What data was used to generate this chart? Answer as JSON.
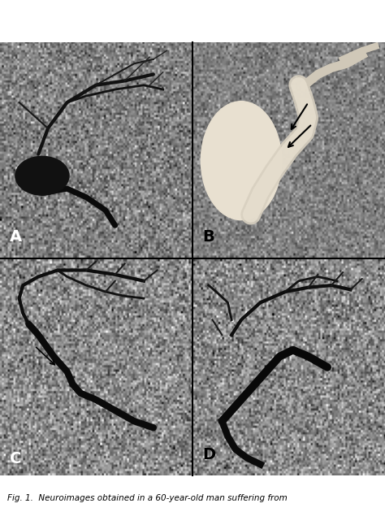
{
  "title": "Fig. 1. Neuroimages obtained in a 60-year-old man suffering from",
  "panel_labels": [
    "A",
    "B",
    "C",
    "D"
  ],
  "panel_label_color": "#000000",
  "background_color": "#ffffff",
  "panel_bg_A": "#a0a0a0",
  "panel_bg_B": "#c8c0b0",
  "panel_bg_C": "#909090",
  "panel_bg_D": "#a8a8a8",
  "figsize": [
    4.74,
    6.46
  ],
  "dpi": 100,
  "caption": "Fig. 1.  Neuroimages obtained in a 60-year-old man suffering from",
  "divider_color": "#000000",
  "label_fontsize": 14,
  "caption_fontsize": 7.5
}
